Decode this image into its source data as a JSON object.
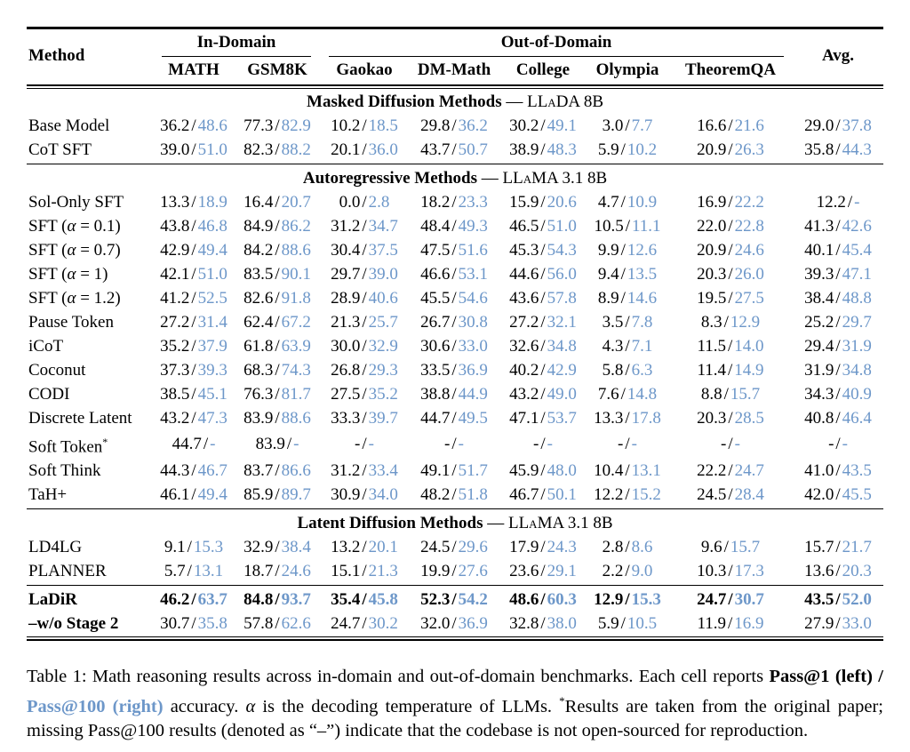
{
  "colors": {
    "accent_blue": "#6d97c9",
    "ink": "#000000"
  },
  "table": {
    "header": {
      "method": "Method",
      "in_domain": "In-Domain",
      "out_of_domain": "Out-of-Domain",
      "avg": "Avg."
    },
    "columns": [
      "MATH",
      "GSM8K",
      "Gaokao",
      "DM-Math",
      "College",
      "Olympia",
      "TheoremQA"
    ],
    "cell_format": "Pass@1 / Pass@100",
    "sections": [
      {
        "name": "Masked Diffusion Methods",
        "sep": "—",
        "model": "LLaDA 8B",
        "groups": [
          [
            {
              "method": "Base Model",
              "sup": "",
              "bold": false,
              "label_bold": false,
              "cells": [
                [
                  "36.2",
                  "48.6"
                ],
                [
                  "77.3",
                  "82.9"
                ],
                [
                  "10.2",
                  "18.5"
                ],
                [
                  "29.8",
                  "36.2"
                ],
                [
                  "30.2",
                  "49.1"
                ],
                [
                  "3.0",
                  "7.7"
                ],
                [
                  "16.6",
                  "21.6"
                ],
                [
                  "29.0",
                  "37.8"
                ]
              ]
            },
            {
              "method": "CoT SFT",
              "sup": "",
              "bold": false,
              "label_bold": false,
              "cells": [
                [
                  "39.0",
                  "51.0"
                ],
                [
                  "82.3",
                  "88.2"
                ],
                [
                  "20.1",
                  "36.0"
                ],
                [
                  "43.7",
                  "50.7"
                ],
                [
                  "38.9",
                  "48.3"
                ],
                [
                  "5.9",
                  "10.2"
                ],
                [
                  "20.9",
                  "26.3"
                ],
                [
                  "35.8",
                  "44.3"
                ]
              ]
            }
          ]
        ]
      },
      {
        "name": "Autoregressive Methods",
        "sep": "—",
        "model": "LLaMA 3.1 8B",
        "groups": [
          [
            {
              "method": "Sol-Only SFT",
              "sup": "",
              "bold": false,
              "label_bold": false,
              "cells": [
                [
                  "13.3",
                  "18.9"
                ],
                [
                  "16.4",
                  "20.7"
                ],
                [
                  "0.0",
                  "2.8"
                ],
                [
                  "18.2",
                  "23.3"
                ],
                [
                  "15.9",
                  "20.6"
                ],
                [
                  "4.7",
                  "10.9"
                ],
                [
                  "16.9",
                  "22.2"
                ],
                [
                  "12.2",
                  "-"
                ]
              ]
            },
            {
              "method": "SFT (α = 0.1)",
              "sup": "",
              "bold": false,
              "label_bold": false,
              "cells": [
                [
                  "43.8",
                  "46.8"
                ],
                [
                  "84.9",
                  "86.2"
                ],
                [
                  "31.2",
                  "34.7"
                ],
                [
                  "48.4",
                  "49.3"
                ],
                [
                  "46.5",
                  "51.0"
                ],
                [
                  "10.5",
                  "11.1"
                ],
                [
                  "22.0",
                  "22.8"
                ],
                [
                  "41.3",
                  "42.6"
                ]
              ]
            },
            {
              "method": "SFT (α = 0.7)",
              "sup": "",
              "bold": false,
              "label_bold": false,
              "cells": [
                [
                  "42.9",
                  "49.4"
                ],
                [
                  "84.2",
                  "88.6"
                ],
                [
                  "30.4",
                  "37.5"
                ],
                [
                  "47.5",
                  "51.6"
                ],
                [
                  "45.3",
                  "54.3"
                ],
                [
                  "9.9",
                  "12.6"
                ],
                [
                  "20.9",
                  "24.6"
                ],
                [
                  "40.1",
                  "45.4"
                ]
              ]
            },
            {
              "method": "SFT (α = 1)",
              "sup": "",
              "bold": false,
              "label_bold": false,
              "cells": [
                [
                  "42.1",
                  "51.0"
                ],
                [
                  "83.5",
                  "90.1"
                ],
                [
                  "29.7",
                  "39.0"
                ],
                [
                  "46.6",
                  "53.1"
                ],
                [
                  "44.6",
                  "56.0"
                ],
                [
                  "9.4",
                  "13.5"
                ],
                [
                  "20.3",
                  "26.0"
                ],
                [
                  "39.3",
                  "47.1"
                ]
              ]
            },
            {
              "method": "SFT (α = 1.2)",
              "sup": "",
              "bold": false,
              "label_bold": false,
              "cells": [
                [
                  "41.2",
                  "52.5"
                ],
                [
                  "82.6",
                  "91.8"
                ],
                [
                  "28.9",
                  "40.6"
                ],
                [
                  "45.5",
                  "54.6"
                ],
                [
                  "43.6",
                  "57.8"
                ],
                [
                  "8.9",
                  "14.6"
                ],
                [
                  "19.5",
                  "27.5"
                ],
                [
                  "38.4",
                  "48.8"
                ]
              ]
            },
            {
              "method": "Pause Token",
              "sup": "",
              "bold": false,
              "label_bold": false,
              "cells": [
                [
                  "27.2",
                  "31.4"
                ],
                [
                  "62.4",
                  "67.2"
                ],
                [
                  "21.3",
                  "25.7"
                ],
                [
                  "26.7",
                  "30.8"
                ],
                [
                  "27.2",
                  "32.1"
                ],
                [
                  "3.5",
                  "7.8"
                ],
                [
                  "8.3",
                  "12.9"
                ],
                [
                  "25.2",
                  "29.7"
                ]
              ]
            },
            {
              "method": "iCoT",
              "sup": "",
              "bold": false,
              "label_bold": false,
              "cells": [
                [
                  "35.2",
                  "37.9"
                ],
                [
                  "61.8",
                  "63.9"
                ],
                [
                  "30.0",
                  "32.9"
                ],
                [
                  "30.6",
                  "33.0"
                ],
                [
                  "32.6",
                  "34.8"
                ],
                [
                  "4.3",
                  "7.1"
                ],
                [
                  "11.5",
                  "14.0"
                ],
                [
                  "29.4",
                  "31.9"
                ]
              ]
            },
            {
              "method": "Coconut",
              "sup": "",
              "bold": false,
              "label_bold": false,
              "cells": [
                [
                  "37.3",
                  "39.3"
                ],
                [
                  "68.3",
                  "74.3"
                ],
                [
                  "26.8",
                  "29.3"
                ],
                [
                  "33.5",
                  "36.9"
                ],
                [
                  "40.2",
                  "42.9"
                ],
                [
                  "5.8",
                  "6.3"
                ],
                [
                  "11.4",
                  "14.9"
                ],
                [
                  "31.9",
                  "34.8"
                ]
              ]
            },
            {
              "method": "CODI",
              "sup": "",
              "bold": false,
              "label_bold": false,
              "cells": [
                [
                  "38.5",
                  "45.1"
                ],
                [
                  "76.3",
                  "81.7"
                ],
                [
                  "27.5",
                  "35.2"
                ],
                [
                  "38.8",
                  "44.9"
                ],
                [
                  "43.2",
                  "49.0"
                ],
                [
                  "7.6",
                  "14.8"
                ],
                [
                  "8.8",
                  "15.7"
                ],
                [
                  "34.3",
                  "40.9"
                ]
              ]
            },
            {
              "method": "Discrete Latent",
              "sup": "",
              "bold": false,
              "label_bold": false,
              "cells": [
                [
                  "43.2",
                  "47.3"
                ],
                [
                  "83.9",
                  "88.6"
                ],
                [
                  "33.3",
                  "39.7"
                ],
                [
                  "44.7",
                  "49.5"
                ],
                [
                  "47.1",
                  "53.7"
                ],
                [
                  "13.3",
                  "17.8"
                ],
                [
                  "20.3",
                  "28.5"
                ],
                [
                  "40.8",
                  "46.4"
                ]
              ]
            },
            {
              "method": "Soft Token",
              "sup": "*",
              "bold": false,
              "label_bold": false,
              "cells": [
                [
                  "44.7",
                  "-"
                ],
                [
                  "83.9",
                  "-"
                ],
                [
                  "-",
                  "-"
                ],
                [
                  "-",
                  "-"
                ],
                [
                  "-",
                  "-"
                ],
                [
                  "-",
                  "-"
                ],
                [
                  "-",
                  "-"
                ],
                [
                  "-",
                  "-"
                ]
              ]
            },
            {
              "method": "Soft Think",
              "sup": "",
              "bold": false,
              "label_bold": false,
              "cells": [
                [
                  "44.3",
                  "46.7"
                ],
                [
                  "83.7",
                  "86.6"
                ],
                [
                  "31.2",
                  "33.4"
                ],
                [
                  "49.1",
                  "51.7"
                ],
                [
                  "45.9",
                  "48.0"
                ],
                [
                  "10.4",
                  "13.1"
                ],
                [
                  "22.2",
                  "24.7"
                ],
                [
                  "41.0",
                  "43.5"
                ]
              ]
            },
            {
              "method": "TaH+",
              "sup": "",
              "bold": false,
              "label_bold": false,
              "cells": [
                [
                  "46.1",
                  "49.4"
                ],
                [
                  "85.9",
                  "89.7"
                ],
                [
                  "30.9",
                  "34.0"
                ],
                [
                  "48.2",
                  "51.8"
                ],
                [
                  "46.7",
                  "50.1"
                ],
                [
                  "12.2",
                  "15.2"
                ],
                [
                  "24.5",
                  "28.4"
                ],
                [
                  "42.0",
                  "45.5"
                ]
              ]
            }
          ]
        ]
      },
      {
        "name": "Latent Diffusion Methods",
        "sep": "—",
        "model": "LLaMA 3.1 8B",
        "groups": [
          [
            {
              "method": "LD4LG",
              "sup": "",
              "bold": false,
              "label_bold": false,
              "cells": [
                [
                  "9.1",
                  "15.3"
                ],
                [
                  "32.9",
                  "38.4"
                ],
                [
                  "13.2",
                  "20.1"
                ],
                [
                  "24.5",
                  "29.6"
                ],
                [
                  "17.9",
                  "24.3"
                ],
                [
                  "2.8",
                  "8.6"
                ],
                [
                  "9.6",
                  "15.7"
                ],
                [
                  "15.7",
                  "21.7"
                ]
              ]
            },
            {
              "method": "PLANNER",
              "sup": "",
              "bold": false,
              "label_bold": false,
              "cells": [
                [
                  "5.7",
                  "13.1"
                ],
                [
                  "18.7",
                  "24.6"
                ],
                [
                  "15.1",
                  "21.3"
                ],
                [
                  "19.9",
                  "27.6"
                ],
                [
                  "23.6",
                  "29.1"
                ],
                [
                  "2.2",
                  "9.0"
                ],
                [
                  "10.3",
                  "17.3"
                ],
                [
                  "13.6",
                  "20.3"
                ]
              ]
            }
          ],
          [
            {
              "method": "LaDiR",
              "sup": "",
              "bold": true,
              "label_bold": true,
              "cells": [
                [
                  "46.2",
                  "63.7"
                ],
                [
                  "84.8",
                  "93.7"
                ],
                [
                  "35.4",
                  "45.8"
                ],
                [
                  "52.3",
                  "54.2"
                ],
                [
                  "48.6",
                  "60.3"
                ],
                [
                  "12.9",
                  "15.3"
                ],
                [
                  "24.7",
                  "30.7"
                ],
                [
                  "43.5",
                  "52.0"
                ]
              ]
            },
            {
              "method": "–w/o Stage 2",
              "sup": "",
              "bold": false,
              "label_bold": true,
              "cells": [
                [
                  "30.7",
                  "35.8"
                ],
                [
                  "57.8",
                  "62.6"
                ],
                [
                  "24.7",
                  "30.2"
                ],
                [
                  "32.0",
                  "36.9"
                ],
                [
                  "32.8",
                  "38.0"
                ],
                [
                  "5.9",
                  "10.5"
                ],
                [
                  "11.9",
                  "16.9"
                ],
                [
                  "27.9",
                  "33.0"
                ]
              ]
            }
          ]
        ]
      }
    ]
  },
  "caption": {
    "lead": "Table 1: Math reasoning results across in-domain and out-of-domain benchmarks. Each cell reports",
    "pass1": "Pass@1 (left) /",
    "pass100": "Pass@100 (right)",
    "mid": "accuracy.",
    "alpha": "α",
    "alpha_rest": "is the decoding temperature of LLMs.",
    "star": "*",
    "tail": "Results are taken from the original paper; missing Pass@100 results (denoted as “–”) indicate that the codebase is not open-sourced for reproduction."
  }
}
